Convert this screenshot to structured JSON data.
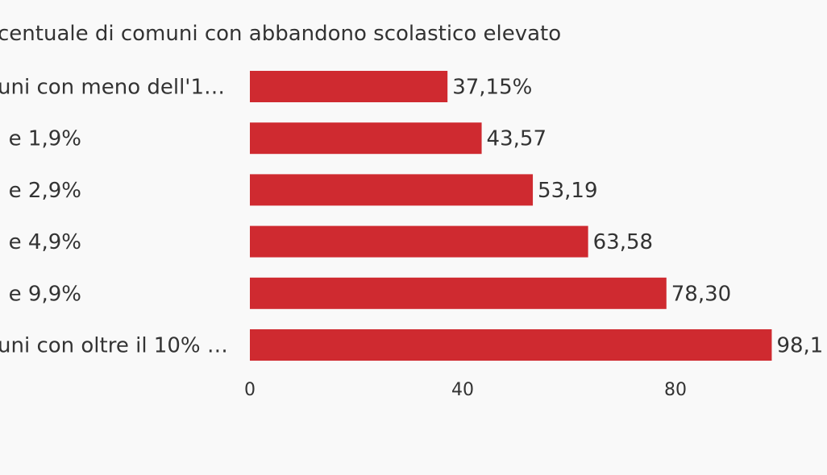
{
  "chart_data": {
    "type": "bar",
    "orientation": "horizontal",
    "title": "centuale di comuni con abbandono scolastico elevato",
    "categories": [
      "uni con meno dell'1…",
      "e 1,9%",
      "e 2,9%",
      "e 4,9%",
      "e 9,9%",
      "uni con oltre il 10% …"
    ],
    "values": [
      37.15,
      43.57,
      53.19,
      63.58,
      78.3,
      98.1
    ],
    "value_labels": [
      "37,15%",
      "43,57",
      "53,19",
      "63,58",
      "78,30",
      "98,1"
    ],
    "xticks": [
      0,
      40,
      80
    ],
    "xtick_labels": [
      "0",
      "40",
      "80"
    ],
    "xlim": [
      0,
      108
    ],
    "grid": false,
    "legend": "none",
    "colors": {
      "bar": "#cf2a30",
      "text": "#333333",
      "background": "#f9f9f9"
    }
  }
}
